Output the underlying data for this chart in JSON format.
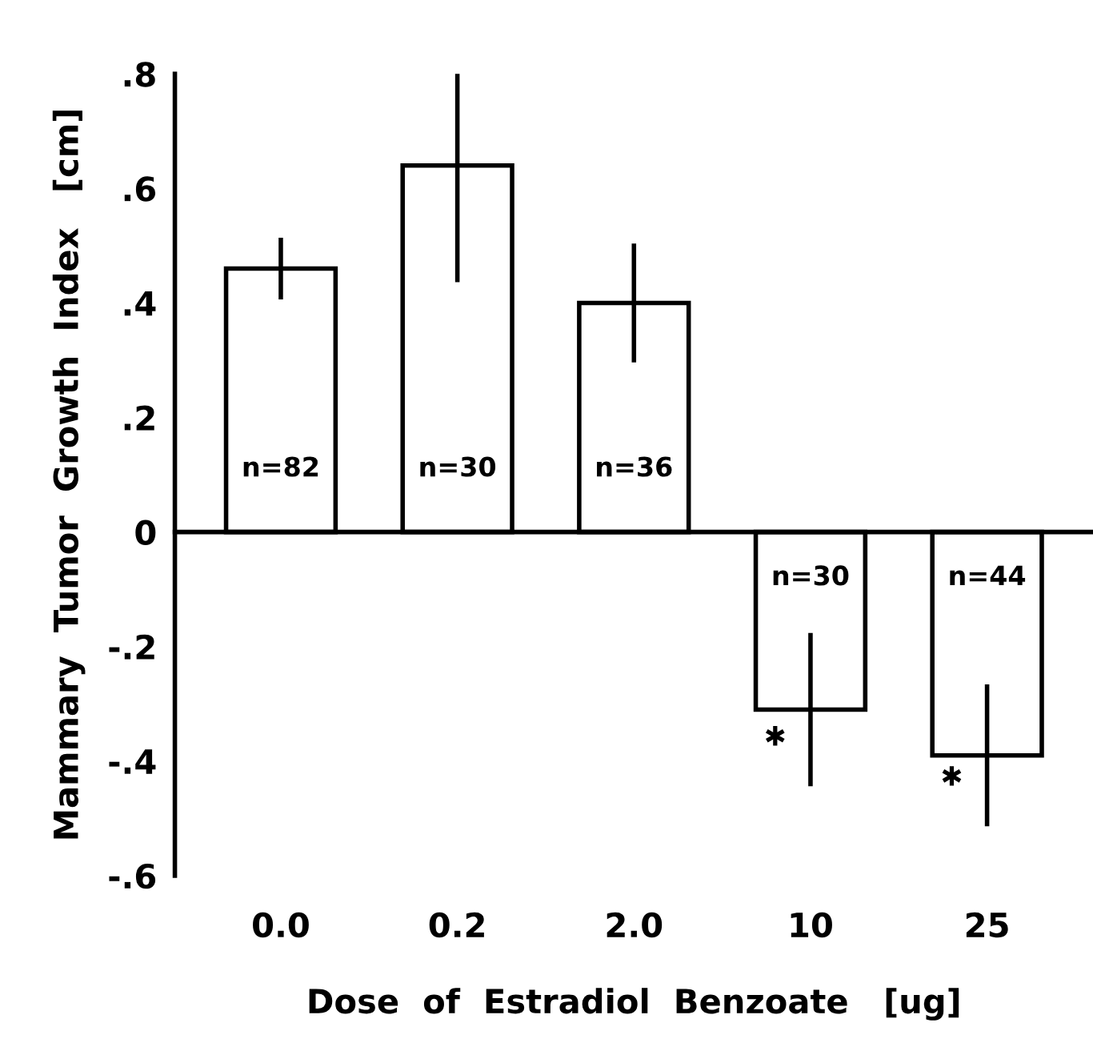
{
  "chart_data": {
    "type": "bar",
    "xlabel": "Dose  of  Estradiol  Benzoate   [ug]",
    "ylabel": "Mammary  Tumor  Growth  Index   [cm]",
    "categories": [
      "0.0",
      "0.2",
      "2.0",
      "10",
      "25"
    ],
    "values": [
      0.46,
      0.64,
      0.4,
      -0.31,
      -0.39
    ],
    "errors": [
      0.05,
      0.2,
      0.1,
      0.13,
      0.12
    ],
    "color": "#ffffff",
    "ylim": [
      -0.6,
      0.8
    ],
    "yticks": [
      {
        "value": -0.6,
        "label": "-.6"
      },
      {
        "value": -0.4,
        "label": "-.4"
      },
      {
        "value": -0.2,
        "label": "-.2"
      },
      0,
      {
        "value": 0.2,
        "label": ".2"
      },
      {
        "value": 0.4,
        "label": ".4"
      },
      {
        "value": 0.6,
        "label": ".6"
      },
      {
        "value": 0.8,
        "label": ".8"
      }
    ],
    "legend": false,
    "annotations": [
      "n=82",
      "n=30",
      "n=36",
      "n=30",
      "n=44",
      {
        "text": "✱",
        "x": "10",
        "y": -0.36
      },
      {
        "text": "✱",
        "x": "25",
        "y": -0.43
      }
    ]
  }
}
